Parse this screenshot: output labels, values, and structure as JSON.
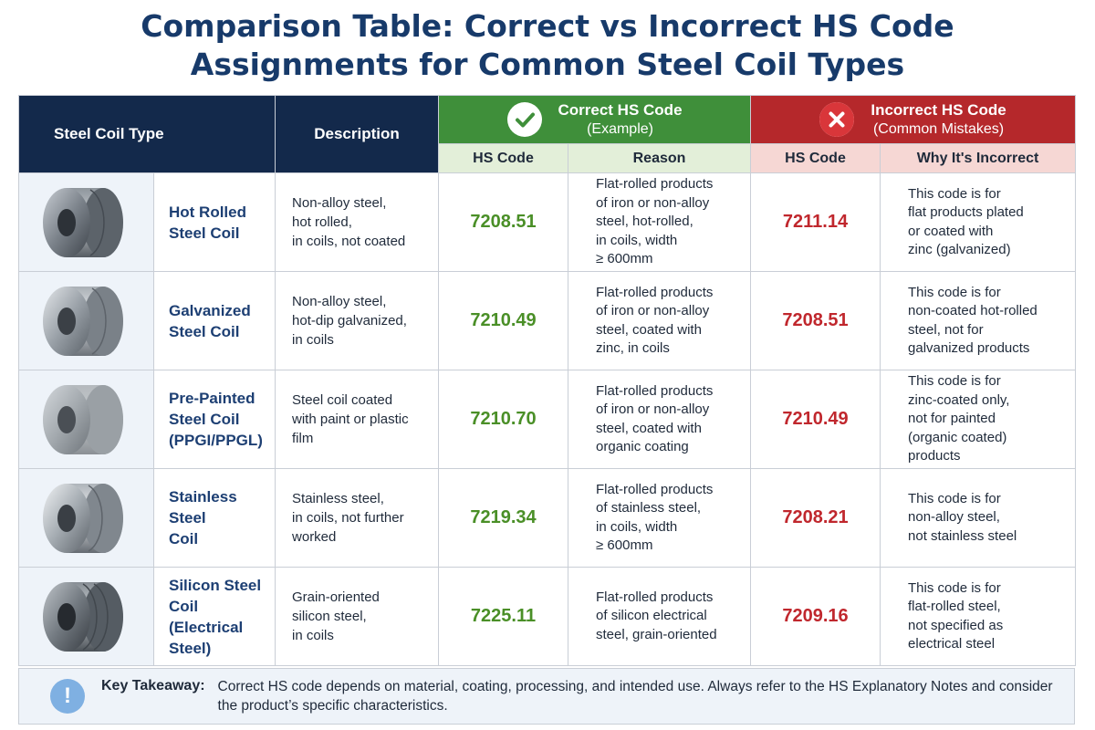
{
  "title_line1": "Comparison Table: Correct vs Incorrect HS Code",
  "title_line2": "Assignments for Common Steel Coil Types",
  "headers": {
    "type": "Steel Coil Type",
    "description": "Description",
    "correct_title": "Correct HS Code",
    "correct_sub": "(Example)",
    "incorrect_title": "Incorrect HS Code",
    "incorrect_sub": "(Common Mistakes)",
    "hs_code": "HS Code",
    "reason": "Reason",
    "hs_code_bad": "HS Code",
    "why": "Why It's Incorrect"
  },
  "icons": {
    "correct": "check-icon",
    "incorrect": "x-icon",
    "info": "exclamation-icon"
  },
  "colors": {
    "header_dark": "#13294b",
    "correct_green": "#3f8f3a",
    "incorrect_red": "#b5282b",
    "code_ok": "#4a8f27",
    "code_bad": "#c0272d"
  },
  "rows": [
    {
      "name": "Hot Rolled\nSteel Coil",
      "description": "Non-alloy steel,\nhot rolled,\nin coils, not coated",
      "correct_code": "7208.51",
      "reason": "Flat-rolled products\nof iron or non-alloy\nsteel, hot-rolled,\nin coils, width\n≥ 600mm",
      "incorrect_code": "7211.14",
      "why": "This code is for\nflat products plated\nor coated with\nzinc (galvanized)"
    },
    {
      "name": "Galvanized\nSteel Coil",
      "description": "Non-alloy steel,\nhot-dip galvanized,\nin coils",
      "correct_code": "7210.49",
      "reason": "Flat-rolled products\nof iron or non-alloy\nsteel, coated with\nzinc, in coils",
      "incorrect_code": "7208.51",
      "why": "This code is for\nnon-coated hot-rolled\nsteel, not for\ngalvanized products"
    },
    {
      "name": "Pre-Painted\nSteel Coil\n(PPGI/PPGL)",
      "description": "Steel coil coated\nwith paint or plastic\nfilm",
      "correct_code": "7210.70",
      "reason": "Flat-rolled products\nof iron or non-alloy\nsteel, coated with\norganic coating",
      "incorrect_code": "7210.49",
      "why": "This code is for\nzinc-coated only,\nnot for painted\n(organic coated)\nproducts"
    },
    {
      "name": "Stainless Steel\nCoil",
      "description": "Stainless steel,\nin coils, not further\nworked",
      "correct_code": "7219.34",
      "reason": "Flat-rolled products\nof stainless steel,\nin coils, width\n≥ 600mm",
      "incorrect_code": "7208.21",
      "why": "This code is for\nnon-alloy steel,\nnot stainless steel"
    },
    {
      "name": "Silicon Steel\nCoil (Electrical\nSteel)",
      "description": "Grain-oriented\nsilicon steel,\nin coils",
      "correct_code": "7225.11",
      "reason": "Flat-rolled products\nof silicon electrical\nsteel, grain-oriented",
      "incorrect_code": "7209.16",
      "why": "This code is for\nflat-rolled steel,\nnot specified as\nelectrical steel"
    }
  ],
  "takeaway": {
    "label": "Key Takeaway:",
    "text": "Correct HS code depends on material, coating, processing, and intended use. Always refer to the HS Explanatory Notes and consider the product’s specific characteristics."
  }
}
